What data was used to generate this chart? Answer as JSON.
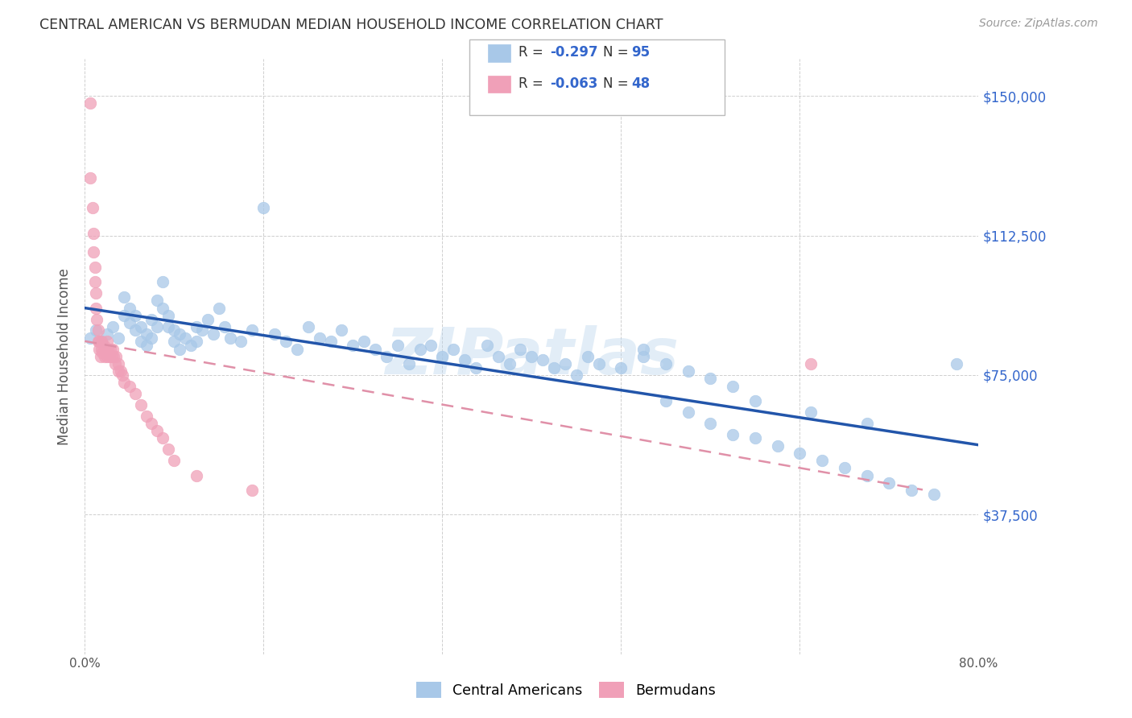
{
  "title": "CENTRAL AMERICAN VS BERMUDAN MEDIAN HOUSEHOLD INCOME CORRELATION CHART",
  "source": "Source: ZipAtlas.com",
  "ylabel": "Median Household Income",
  "watermark": "ZIPatlas",
  "xlim": [
    0.0,
    0.8
  ],
  "ylim": [
    0,
    160000
  ],
  "yticks": [
    0,
    37500,
    75000,
    112500,
    150000
  ],
  "ytick_labels": [
    "",
    "$37,500",
    "$75,000",
    "$112,500",
    "$150,000"
  ],
  "xticks": [
    0.0,
    0.16,
    0.32,
    0.48,
    0.64,
    0.8
  ],
  "xtick_labels": [
    "0.0%",
    "",
    "",
    "",
    "",
    "80.0%"
  ],
  "blue_color": "#A8C8E8",
  "pink_color": "#F0A0B8",
  "blue_line_color": "#2255AA",
  "pink_line_color": "#E090A8",
  "background_color": "#FFFFFF",
  "grid_color": "#BBBBBB",
  "title_color": "#333333",
  "axis_label_color": "#555555",
  "right_tick_color": "#3366CC",
  "blue_scatter_x": [
    0.005,
    0.01,
    0.015,
    0.02,
    0.025,
    0.03,
    0.035,
    0.035,
    0.04,
    0.04,
    0.045,
    0.045,
    0.05,
    0.05,
    0.055,
    0.055,
    0.06,
    0.06,
    0.065,
    0.065,
    0.07,
    0.07,
    0.075,
    0.075,
    0.08,
    0.08,
    0.085,
    0.085,
    0.09,
    0.095,
    0.1,
    0.1,
    0.105,
    0.11,
    0.115,
    0.12,
    0.125,
    0.13,
    0.14,
    0.15,
    0.16,
    0.17,
    0.18,
    0.19,
    0.2,
    0.21,
    0.22,
    0.23,
    0.24,
    0.25,
    0.26,
    0.27,
    0.28,
    0.29,
    0.3,
    0.31,
    0.32,
    0.33,
    0.34,
    0.35,
    0.36,
    0.37,
    0.38,
    0.39,
    0.4,
    0.41,
    0.42,
    0.43,
    0.44,
    0.45,
    0.46,
    0.48,
    0.5,
    0.52,
    0.54,
    0.56,
    0.58,
    0.6,
    0.62,
    0.64,
    0.66,
    0.68,
    0.7,
    0.72,
    0.74,
    0.76,
    0.5,
    0.52,
    0.54,
    0.56,
    0.58,
    0.6,
    0.65,
    0.7,
    0.78
  ],
  "blue_scatter_y": [
    85000,
    87000,
    84000,
    86000,
    88000,
    85000,
    96000,
    91000,
    89000,
    93000,
    87000,
    91000,
    88000,
    84000,
    86000,
    83000,
    90000,
    85000,
    95000,
    88000,
    100000,
    93000,
    91000,
    88000,
    87000,
    84000,
    86000,
    82000,
    85000,
    83000,
    88000,
    84000,
    87000,
    90000,
    86000,
    93000,
    88000,
    85000,
    84000,
    87000,
    120000,
    86000,
    84000,
    82000,
    88000,
    85000,
    84000,
    87000,
    83000,
    84000,
    82000,
    80000,
    83000,
    78000,
    82000,
    83000,
    80000,
    82000,
    79000,
    77000,
    83000,
    80000,
    78000,
    82000,
    80000,
    79000,
    77000,
    78000,
    75000,
    80000,
    78000,
    77000,
    82000,
    68000,
    65000,
    62000,
    59000,
    58000,
    56000,
    54000,
    52000,
    50000,
    48000,
    46000,
    44000,
    43000,
    80000,
    78000,
    76000,
    74000,
    72000,
    68000,
    65000,
    62000,
    78000
  ],
  "pink_scatter_x": [
    0.005,
    0.005,
    0.007,
    0.008,
    0.008,
    0.009,
    0.009,
    0.01,
    0.01,
    0.011,
    0.012,
    0.012,
    0.013,
    0.013,
    0.014,
    0.015,
    0.015,
    0.016,
    0.017,
    0.018,
    0.019,
    0.02,
    0.02,
    0.021,
    0.022,
    0.023,
    0.024,
    0.025,
    0.026,
    0.027,
    0.028,
    0.03,
    0.03,
    0.032,
    0.034,
    0.035,
    0.04,
    0.045,
    0.05,
    0.055,
    0.06,
    0.065,
    0.07,
    0.075,
    0.08,
    0.1,
    0.15,
    0.65
  ],
  "pink_scatter_y": [
    148000,
    128000,
    120000,
    113000,
    108000,
    104000,
    100000,
    97000,
    93000,
    90000,
    87000,
    84000,
    84000,
    82000,
    80000,
    84000,
    82000,
    81000,
    83000,
    80000,
    82000,
    84000,
    80000,
    82000,
    80000,
    82000,
    80000,
    82000,
    80000,
    78000,
    80000,
    78000,
    76000,
    76000,
    75000,
    73000,
    72000,
    70000,
    67000,
    64000,
    62000,
    60000,
    58000,
    55000,
    52000,
    48000,
    44000,
    78000
  ]
}
